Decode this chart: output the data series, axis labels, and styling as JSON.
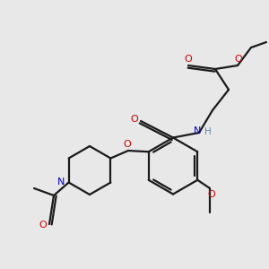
{
  "bg_color": "#e8e8e8",
  "bond_color": "#1a1a1a",
  "oxygen_color": "#cc0000",
  "nitrogen_color": "#0000cc",
  "hydrogen_color": "#6688aa",
  "line_width": 1.6,
  "fig_size": [
    3.0,
    3.0
  ],
  "dpi": 100,
  "xlim": [
    0,
    10
  ],
  "ylim": [
    0,
    10
  ]
}
